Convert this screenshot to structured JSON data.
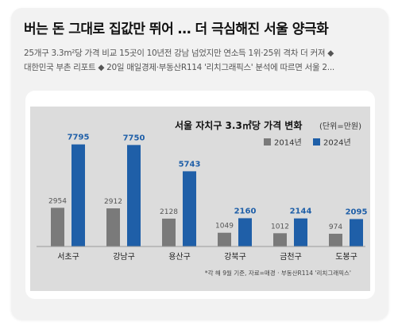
{
  "article": {
    "headline": "버는 돈 그대로 집값만 뛰어 … 더 극심해진 서울 양극화",
    "summary_line1": "25개구 3.3m²당 가격 비교 15곳이 10년전 강남 넘었지만 연소득 1위·25위 격차 더 커져 ◆",
    "summary_line2": "대한민국 부촌 리포트 ◆ 20일 매일경제·부동산R114 '리치그래픽스' 분석에 따르면 서울 2..."
  },
  "colors": {
    "panel": "#dcdcdc",
    "series_2014": "#7a7a7a",
    "series_2024": "#1f5fa8",
    "value_2014_text": "#555555",
    "value_2024_text": "#1f5fa8"
  },
  "chart_data": {
    "type": "bar",
    "title": "서울 자치구 3.3㎡당 가격 변화",
    "unit_note": "(단위=만원)",
    "categories": [
      "서초구",
      "강남구",
      "용산구",
      "강북구",
      "금천구",
      "도봉구"
    ],
    "series": [
      {
        "name": "2014년",
        "values": [
          2954,
          2912,
          2128,
          1049,
          1012,
          974
        ]
      },
      {
        "name": "2024년",
        "values": [
          7795,
          7750,
          5743,
          2160,
          2144,
          2095
        ]
      }
    ],
    "ylim": [
      0,
      8500
    ],
    "grid": false,
    "legend_position": "top-right",
    "footnote": "*각 해 9월 기준, 자료=매경 · 부동산R114 '리치그래픽스'"
  }
}
